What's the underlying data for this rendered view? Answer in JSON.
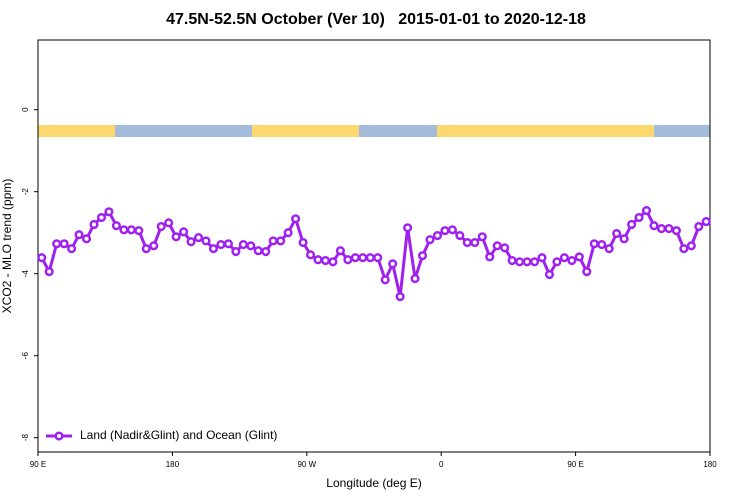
{
  "chart_data": {
    "type": "line",
    "title": "47.5N-52.5N October (Ver 10)   2015-01-01 to 2020-12-18",
    "x_label": "Longitude (deg E)",
    "y_label": "XCO2 - MLO trend (ppm)",
    "xlim": [
      90,
      540
    ],
    "xticks": [
      {
        "value": 90,
        "label": "90 E"
      },
      180,
      {
        "value": 270,
        "label": "90 W"
      },
      {
        "value": 360,
        "label": "0"
      },
      {
        "value": 450,
        "label": "90 E"
      },
      {
        "value": 540,
        "label": "180"
      }
    ],
    "ylim": [
      -8.35,
      1.7
    ],
    "yticks": [
      -8,
      -6,
      -4,
      -2,
      0
    ],
    "legend": "bottom-left",
    "x": [
      92.5,
      97.5,
      102.5,
      107.5,
      112.5,
      117.5,
      122.5,
      127.5,
      132.5,
      137.5,
      142.5,
      147.5,
      152.5,
      157.5,
      162.5,
      167.5,
      172.5,
      177.5,
      182.5,
      187.5,
      192.5,
      197.5,
      202.5,
      207.5,
      212.5,
      217.5,
      222.5,
      227.5,
      232.5,
      237.5,
      242.5,
      247.5,
      252.5,
      257.5,
      262.5,
      267.5,
      272.5,
      277.5,
      282.5,
      287.5,
      292.5,
      297.5,
      302.5,
      307.5,
      312.5,
      317.5,
      322.5,
      327.5,
      332.5,
      337.5,
      342.5,
      347.5,
      352.5,
      357.5,
      362.5,
      367.5,
      372.5,
      377.5,
      382.5,
      387.5,
      392.5,
      397.5,
      402.5,
      407.5,
      412.5,
      417.5,
      422.5,
      427.5,
      432.5,
      437.5,
      442.5,
      447.5,
      452.5,
      457.5,
      462.5,
      467.5,
      472.5,
      477.5,
      482.5,
      487.5,
      492.5,
      497.5,
      502.5,
      507.5,
      512.5,
      517.5,
      522.5,
      527.5,
      532.5,
      537.5
    ],
    "series": [
      {
        "name": "Land (Nadir&Glint) and Ocean (Glint)",
        "color": "#a020f0",
        "values": [
          -3.61,
          -3.95,
          -3.27,
          -3.27,
          -3.39,
          -3.05,
          -3.15,
          -2.8,
          -2.63,
          -2.49,
          -2.83,
          -2.93,
          -2.93,
          -2.95,
          -3.39,
          -3.32,
          -2.85,
          -2.76,
          -3.1,
          -2.98,
          -3.22,
          -3.12,
          -3.2,
          -3.39,
          -3.29,
          -3.27,
          -3.46,
          -3.29,
          -3.32,
          -3.44,
          -3.46,
          -3.2,
          -3.2,
          -3.0,
          -2.66,
          -3.24,
          -3.54,
          -3.66,
          -3.68,
          -3.71,
          -3.44,
          -3.66,
          -3.61,
          -3.61,
          -3.61,
          -3.61,
          -4.15,
          -3.76,
          -4.56,
          -2.88,
          -4.12,
          -3.56,
          -3.17,
          -3.07,
          -2.95,
          -2.93,
          -3.07,
          -3.24,
          -3.24,
          -3.1,
          -3.59,
          -3.32,
          -3.37,
          -3.68,
          -3.71,
          -3.71,
          -3.71,
          -3.61,
          -4.02,
          -3.71,
          -3.61,
          -3.68,
          -3.59,
          -3.95,
          -3.27,
          -3.29,
          -3.39,
          -3.02,
          -3.15,
          -2.8,
          -2.63,
          -2.46,
          -2.83,
          -2.9,
          -2.9,
          -2.95,
          -3.39,
          -3.32,
          -2.85,
          -2.73
        ]
      }
    ]
  }
}
